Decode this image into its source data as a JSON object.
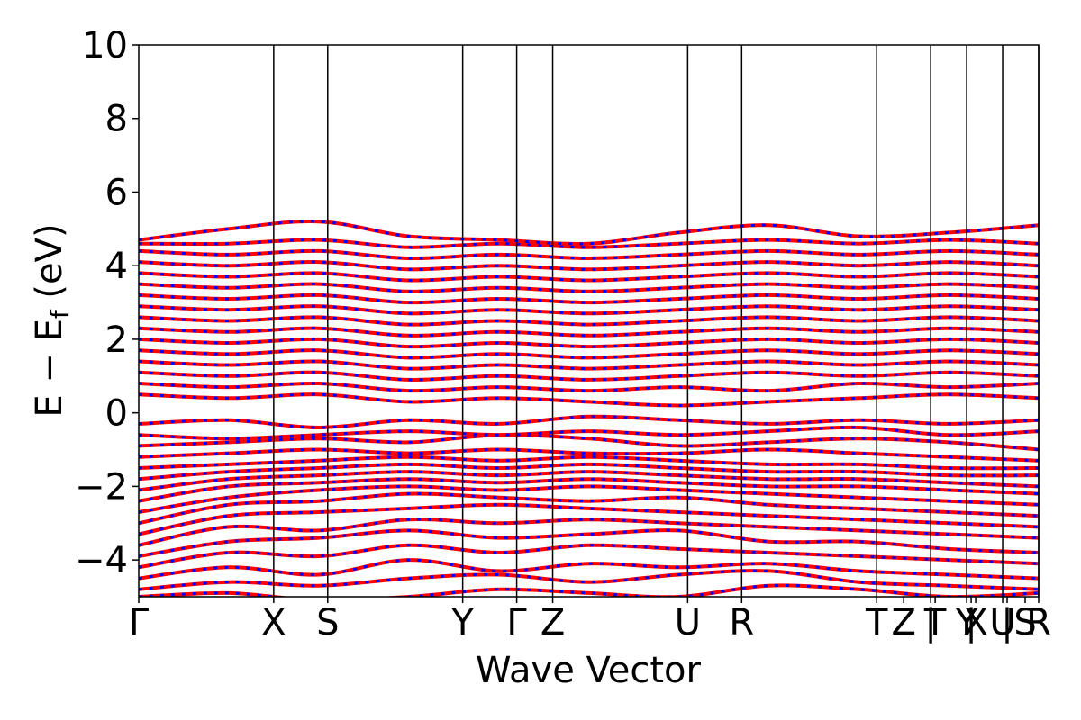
{
  "chart_data": {
    "type": "line",
    "title": "",
    "xlabel": "Wave Vector",
    "ylabel_main": "E − E",
    "ylabel_sub": "f",
    "ylabel_unit": " (eV)",
    "ylim": [
      -5,
      10
    ],
    "yticks": [
      -4,
      -2,
      0,
      2,
      4,
      6,
      8,
      10
    ],
    "ytick_labels": [
      "−4",
      "−2",
      "0",
      "2",
      "4",
      "6",
      "8",
      "10"
    ],
    "x_range": [
      0,
      10
    ],
    "kpoint_labels": [
      "Γ",
      "X",
      "S",
      "Y",
      "Γ",
      "Z",
      "U",
      "R",
      "T",
      "Z",
      "|",
      "T",
      "Y",
      "|",
      "X",
      "U",
      "|",
      "S",
      "R"
    ],
    "kpoint_positions": [
      0,
      1.5,
      2.1,
      3.6,
      4.2,
      4.6,
      6.1,
      6.7,
      8.2,
      8.5,
      8.8,
      8.85,
      9.2,
      9.25,
      9.3,
      9.6,
      9.65,
      9.85,
      10
    ],
    "kpath_lines": [
      1.5,
      2.1,
      3.6,
      4.2,
      4.6,
      6.1,
      6.7,
      8.2,
      8.8,
      9.2,
      9.6,
      10
    ],
    "grid": false,
    "legend": "none",
    "series_colors": {
      "primary": "#ff0000",
      "overlay": "#0000ff"
    },
    "bands": [
      {
        "values": [
          -5.0,
          -4.9,
          -5.1,
          -5.0,
          -4.8,
          -4.9,
          -5.0,
          -4.7,
          -4.8,
          -5.0,
          -4.9
        ]
      },
      {
        "values": [
          -4.8,
          -4.6,
          -4.7,
          -4.5,
          -4.4,
          -4.6,
          -4.4,
          -4.3,
          -4.6,
          -4.7,
          -4.8
        ]
      },
      {
        "values": [
          -4.5,
          -4.2,
          -4.4,
          -4.0,
          -4.3,
          -4.1,
          -4.2,
          -4.1,
          -4.3,
          -4.4,
          -4.5
        ]
      },
      {
        "values": [
          -4.2,
          -3.8,
          -3.9,
          -3.6,
          -3.8,
          -3.6,
          -3.7,
          -3.8,
          -3.9,
          -4.0,
          -4.1
        ]
      },
      {
        "values": [
          -3.9,
          -3.5,
          -3.4,
          -3.2,
          -3.4,
          -3.3,
          -3.2,
          -3.5,
          -3.5,
          -3.7,
          -3.8
        ]
      },
      {
        "values": [
          -3.6,
          -3.1,
          -3.2,
          -2.9,
          -3.0,
          -2.9,
          -3.0,
          -3.1,
          -3.2,
          -3.3,
          -3.4
        ]
      },
      {
        "values": [
          -3.3,
          -2.8,
          -2.7,
          -2.6,
          -2.5,
          -2.6,
          -2.7,
          -2.8,
          -2.9,
          -3.0,
          -3.1
        ]
      },
      {
        "values": [
          -3.0,
          -2.5,
          -2.4,
          -2.2,
          -2.3,
          -2.4,
          -2.3,
          -2.5,
          -2.6,
          -2.7,
          -2.8
        ]
      },
      {
        "values": [
          -2.7,
          -2.3,
          -2.1,
          -2.0,
          -2.1,
          -2.0,
          -2.1,
          -2.2,
          -2.3,
          -2.4,
          -2.5
        ]
      },
      {
        "values": [
          -2.4,
          -2.0,
          -1.9,
          -1.8,
          -1.9,
          -1.8,
          -1.9,
          -2.0,
          -2.0,
          -2.1,
          -2.2
        ]
      },
      {
        "values": [
          -2.1,
          -1.8,
          -1.7,
          -1.6,
          -1.7,
          -1.6,
          -1.7,
          -1.8,
          -1.8,
          -1.9,
          -2.0
        ]
      },
      {
        "values": [
          -1.8,
          -1.6,
          -1.5,
          -1.4,
          -1.5,
          -1.4,
          -1.5,
          -1.6,
          -1.6,
          -1.7,
          -1.7
        ]
      },
      {
        "values": [
          -1.5,
          -1.4,
          -1.3,
          -1.2,
          -1.3,
          -1.2,
          -1.3,
          -1.4,
          -1.4,
          -1.5,
          -1.5
        ]
      },
      {
        "values": [
          -1.2,
          -1.1,
          -1.0,
          -1.1,
          -1.0,
          -1.1,
          -1.1,
          -1.0,
          -1.1,
          -1.2,
          -1.3
        ]
      },
      {
        "values": [
          -0.9,
          -0.8,
          -0.7,
          -0.8,
          -0.6,
          -0.7,
          -0.9,
          -0.8,
          -0.7,
          -0.8,
          -1.0
        ]
      },
      {
        "values": [
          -0.6,
          -0.7,
          -0.6,
          -0.5,
          -0.6,
          -0.5,
          -0.6,
          -0.5,
          -0.4,
          -0.6,
          -0.5
        ]
      },
      {
        "values": [
          -0.3,
          -0.2,
          -0.4,
          -0.2,
          -0.3,
          -0.1,
          -0.2,
          -0.3,
          -0.2,
          -0.3,
          -0.2
        ]
      },
      {
        "values": [
          0.5,
          0.4,
          0.5,
          0.3,
          0.4,
          0.3,
          0.2,
          0.3,
          0.4,
          0.5,
          0.4
        ]
      },
      {
        "values": [
          0.8,
          0.7,
          0.8,
          0.6,
          0.7,
          0.6,
          0.7,
          0.6,
          0.8,
          0.7,
          0.8
        ]
      },
      {
        "values": [
          1.1,
          1.0,
          1.1,
          0.9,
          1.0,
          0.9,
          1.0,
          1.1,
          1.0,
          1.1,
          1.0
        ]
      },
      {
        "values": [
          1.4,
          1.3,
          1.4,
          1.2,
          1.3,
          1.2,
          1.3,
          1.4,
          1.3,
          1.4,
          1.3
        ]
      },
      {
        "values": [
          1.7,
          1.6,
          1.7,
          1.5,
          1.6,
          1.5,
          1.6,
          1.7,
          1.6,
          1.7,
          1.6
        ]
      },
      {
        "values": [
          2.0,
          1.9,
          2.0,
          1.8,
          1.9,
          1.8,
          1.9,
          2.0,
          1.9,
          2.0,
          1.9
        ]
      },
      {
        "values": [
          2.3,
          2.2,
          2.3,
          2.1,
          2.2,
          2.1,
          2.2,
          2.3,
          2.2,
          2.3,
          2.2
        ]
      },
      {
        "values": [
          2.6,
          2.5,
          2.6,
          2.4,
          2.5,
          2.4,
          2.5,
          2.6,
          2.5,
          2.6,
          2.5
        ]
      },
      {
        "values": [
          2.9,
          2.8,
          2.9,
          2.7,
          2.8,
          2.7,
          2.8,
          2.9,
          2.8,
          2.9,
          2.8
        ]
      },
      {
        "values": [
          3.2,
          3.1,
          3.2,
          3.0,
          3.1,
          3.0,
          3.1,
          3.2,
          3.1,
          3.2,
          3.1
        ]
      },
      {
        "values": [
          3.5,
          3.4,
          3.5,
          3.3,
          3.4,
          3.3,
          3.4,
          3.5,
          3.4,
          3.5,
          3.4
        ]
      },
      {
        "values": [
          3.8,
          3.7,
          3.8,
          3.6,
          3.7,
          3.6,
          3.7,
          3.8,
          3.7,
          3.8,
          3.7
        ]
      },
      {
        "values": [
          4.1,
          4.0,
          4.1,
          3.9,
          4.0,
          3.9,
          4.0,
          4.1,
          4.0,
          4.1,
          4.0
        ]
      },
      {
        "values": [
          4.4,
          4.3,
          4.4,
          4.2,
          4.3,
          4.2,
          4.3,
          4.4,
          4.3,
          4.4,
          4.3
        ]
      },
      {
        "values": [
          4.6,
          4.6,
          4.7,
          4.5,
          4.6,
          4.5,
          4.6,
          4.7,
          4.6,
          4.7,
          4.6
        ]
      },
      {
        "values": [
          4.7,
          5.0,
          5.2,
          4.8,
          4.7,
          4.6,
          4.9,
          5.1,
          4.8,
          4.9,
          5.1
        ]
      }
    ]
  }
}
